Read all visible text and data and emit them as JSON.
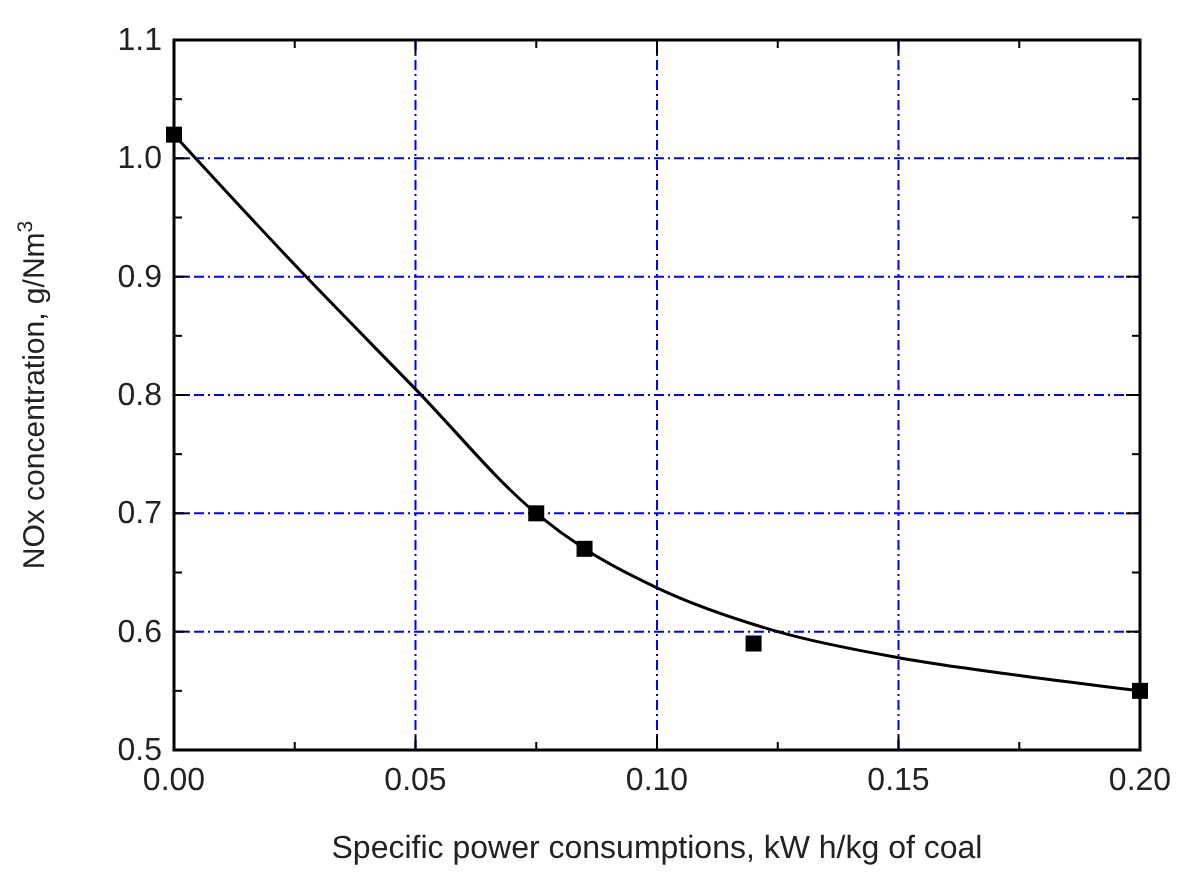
{
  "chart_data": {
    "type": "scatter",
    "xlabel": "Specific power consumptions, kW h/kg of coal",
    "ylabel": "NOx concentration, g/Nm$^{3}$",
    "xlim": [
      0,
      0.2
    ],
    "ylim": [
      0.5,
      1.1
    ],
    "xticks": [
      {
        "value": 0,
        "label": "0.00"
      },
      {
        "value": 0.05,
        "label": "0.05"
      },
      {
        "value": 0.1,
        "label": "0.10"
      },
      {
        "value": 0.15,
        "label": "0.15"
      },
      {
        "value": 0.2,
        "label": "0.20"
      }
    ],
    "yticks": [
      {
        "value": 0.5,
        "label": "0.5"
      },
      {
        "value": 0.6,
        "label": "0.6"
      },
      {
        "value": 0.7,
        "label": "0.7"
      },
      {
        "value": 0.8,
        "label": "0.8"
      },
      {
        "value": 0.9,
        "label": "0.9"
      },
      {
        "value": 1.0,
        "label": "1.0"
      },
      {
        "value": 1.1,
        "label": "1.1"
      }
    ],
    "grid": true,
    "marker": "square",
    "series": [
      {
        "color": "#000000",
        "x": [
          0,
          0.075,
          0.085,
          0.12,
          0.2
        ],
        "values": [
          1.02,
          0.7,
          0.67,
          0.59,
          0.55
        ]
      },
      {
        "type": "line",
        "color": "#000000",
        "line_style": "solid",
        "marker": "none",
        "x": [
          0,
          0.025,
          0.05,
          0.075,
          0.085,
          0.1,
          0.125,
          0.15,
          0.175,
          0.2
        ],
        "values": [
          1.02,
          0.91,
          0.805,
          0.7,
          0.67,
          0.637,
          0.6,
          0.578,
          0.563,
          0.55
        ]
      }
    ]
  }
}
